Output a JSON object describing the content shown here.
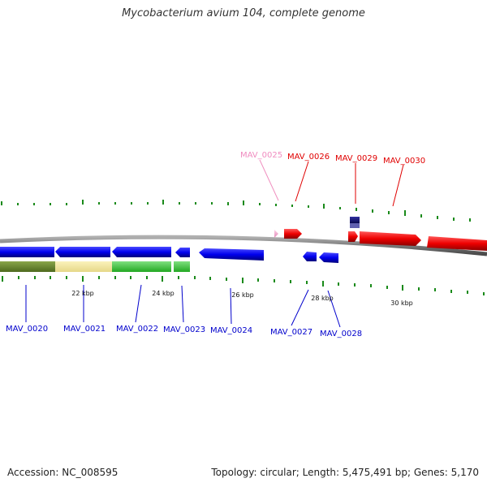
{
  "title": "Mycobacterium avium 104, complete genome",
  "footer": {
    "accession": "Accession: NC_008595",
    "stats": "Topology: circular; Length: 5,475,491 bp; Genes: 5,170"
  },
  "colors": {
    "backbone": "#808080",
    "forward_gene": "#ee0000",
    "reverse_gene": "#0000ee",
    "pseudo_gene": "#f0a0c8",
    "tick": "#1a8a1a"
  },
  "ruler_labels": [
    "22 kbp",
    "24 kbp",
    "26 kbp",
    "28 kbp",
    "30 kbp"
  ],
  "genes_above": [
    {
      "id": "MAV_0025",
      "color": "#f08cc0"
    },
    {
      "id": "MAV_0026",
      "color": "#e00000"
    },
    {
      "id": "MAV_0029",
      "color": "#e00000"
    },
    {
      "id": "MAV_0030",
      "color": "#e00000"
    }
  ],
  "genes_below": [
    {
      "id": "MAV_0020",
      "color": "#0000cc"
    },
    {
      "id": "MAV_0021",
      "color": "#0000cc"
    },
    {
      "id": "MAV_0022",
      "color": "#0000cc"
    },
    {
      "id": "MAV_0023",
      "color": "#0000cc"
    },
    {
      "id": "MAV_0024",
      "color": "#0000cc"
    },
    {
      "id": "MAV_0027",
      "color": "#0000cc"
    },
    {
      "id": "MAV_0028",
      "color": "#0000cc"
    }
  ]
}
